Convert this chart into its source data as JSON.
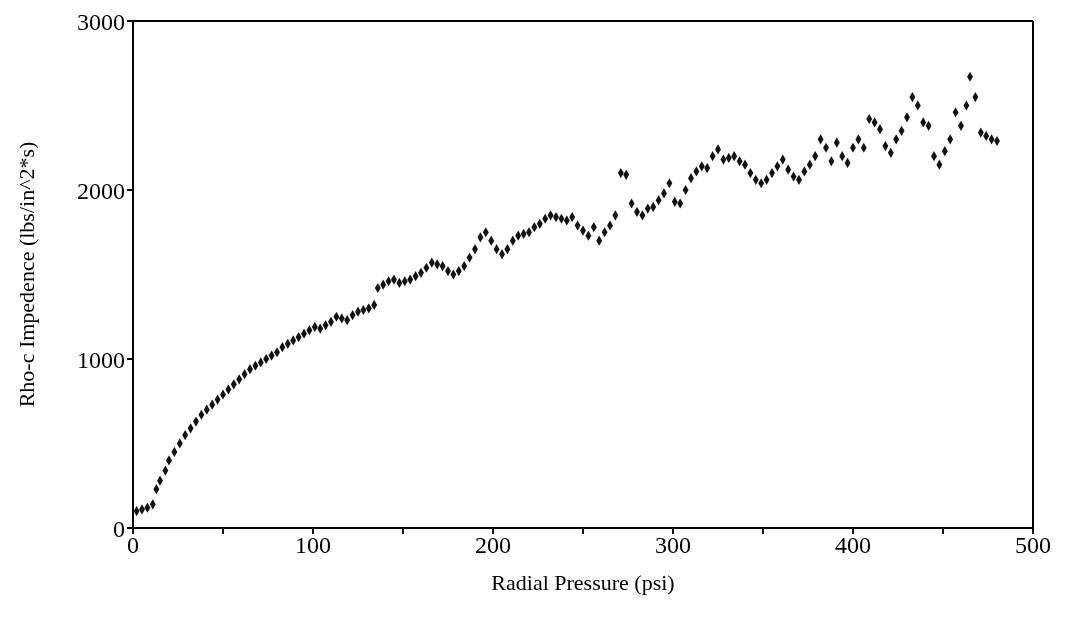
{
  "chart_data": {
    "type": "scatter",
    "xlabel": "Radial Pressure (psi)",
    "ylabel": "Rho-c Impedence (lbs/in^2*s)",
    "xlim": [
      0,
      500
    ],
    "ylim": [
      0,
      3000
    ],
    "xticks": [
      0,
      {
        "value": 50,
        "label": null
      },
      100,
      {
        "value": 150,
        "label": null
      },
      200,
      {
        "value": 250,
        "label": null
      },
      300,
      {
        "value": 350,
        "label": null
      },
      400,
      {
        "value": 450,
        "label": null
      },
      500
    ],
    "yticks": [
      0,
      1000,
      2000,
      3000
    ],
    "marker": "diamond",
    "series": [
      {
        "color": "#111111",
        "x": [
          2,
          5,
          8,
          11,
          13,
          15,
          18,
          20,
          23,
          26,
          29,
          32,
          35,
          38,
          41,
          44,
          47,
          50,
          53,
          56,
          59,
          62,
          65,
          68,
          71,
          74,
          77,
          80,
          83,
          86,
          89,
          92,
          95,
          98,
          101,
          104,
          107,
          110,
          113,
          116,
          119,
          122,
          125,
          128,
          131,
          134,
          136,
          139,
          142,
          145,
          148,
          151,
          154,
          157,
          160,
          163,
          166,
          169,
          172,
          175,
          178,
          181,
          184,
          187,
          190,
          193,
          196,
          199,
          202,
          205,
          208,
          211,
          214,
          217,
          220,
          223,
          226,
          229,
          232,
          235,
          238,
          241,
          244,
          247,
          250,
          253,
          256,
          259,
          262,
          265,
          268,
          271,
          274,
          277,
          280,
          283,
          286,
          289,
          292,
          295,
          298,
          301,
          304,
          307,
          310,
          313,
          316,
          319,
          322,
          325,
          328,
          331,
          334,
          337,
          340,
          343,
          346,
          349,
          352,
          355,
          358,
          361,
          364,
          367,
          370,
          373,
          376,
          379,
          382,
          385,
          388,
          391,
          394,
          397,
          400,
          403,
          406,
          409,
          412,
          415,
          418,
          421,
          424,
          427,
          430,
          433,
          436,
          439,
          442,
          445,
          448,
          451,
          454,
          457,
          460,
          463,
          465,
          468,
          471,
          474,
          477,
          480
        ],
        "values": [
          100,
          110,
          120,
          140,
          230,
          280,
          340,
          400,
          450,
          500,
          550,
          590,
          630,
          670,
          700,
          730,
          760,
          790,
          820,
          850,
          880,
          910,
          940,
          960,
          980,
          1000,
          1020,
          1040,
          1070,
          1090,
          1110,
          1130,
          1150,
          1170,
          1190,
          1180,
          1200,
          1220,
          1250,
          1240,
          1230,
          1260,
          1280,
          1290,
          1300,
          1320,
          1420,
          1440,
          1460,
          1470,
          1450,
          1460,
          1470,
          1490,
          1510,
          1540,
          1570,
          1560,
          1550,
          1520,
          1500,
          1520,
          1550,
          1600,
          1650,
          1720,
          1750,
          1700,
          1650,
          1620,
          1650,
          1700,
          1730,
          1740,
          1750,
          1780,
          1800,
          1830,
          1850,
          1840,
          1830,
          1820,
          1840,
          1790,
          1760,
          1730,
          1780,
          1700,
          1750,
          1790,
          1850,
          2100,
          2090,
          1920,
          1870,
          1850,
          1890,
          1900,
          1940,
          1980,
          2040,
          1930,
          1920,
          2000,
          2070,
          2110,
          2140,
          2130,
          2200,
          2240,
          2180,
          2190,
          2200,
          2170,
          2150,
          2100,
          2060,
          2040,
          2060,
          2100,
          2140,
          2180,
          2120,
          2080,
          2060,
          2110,
          2150,
          2200,
          2300,
          2250,
          2170,
          2280,
          2200,
          2160,
          2250,
          2300,
          2250,
          2420,
          2400,
          2360,
          2260,
          2220,
          2300,
          2350,
          2430,
          2550,
          2500,
          2400,
          2380,
          2200,
          2150,
          2230,
          2300,
          2460,
          2380,
          2500,
          2670,
          2550,
          2340,
          2320,
          2300,
          2290
        ]
      }
    ]
  }
}
